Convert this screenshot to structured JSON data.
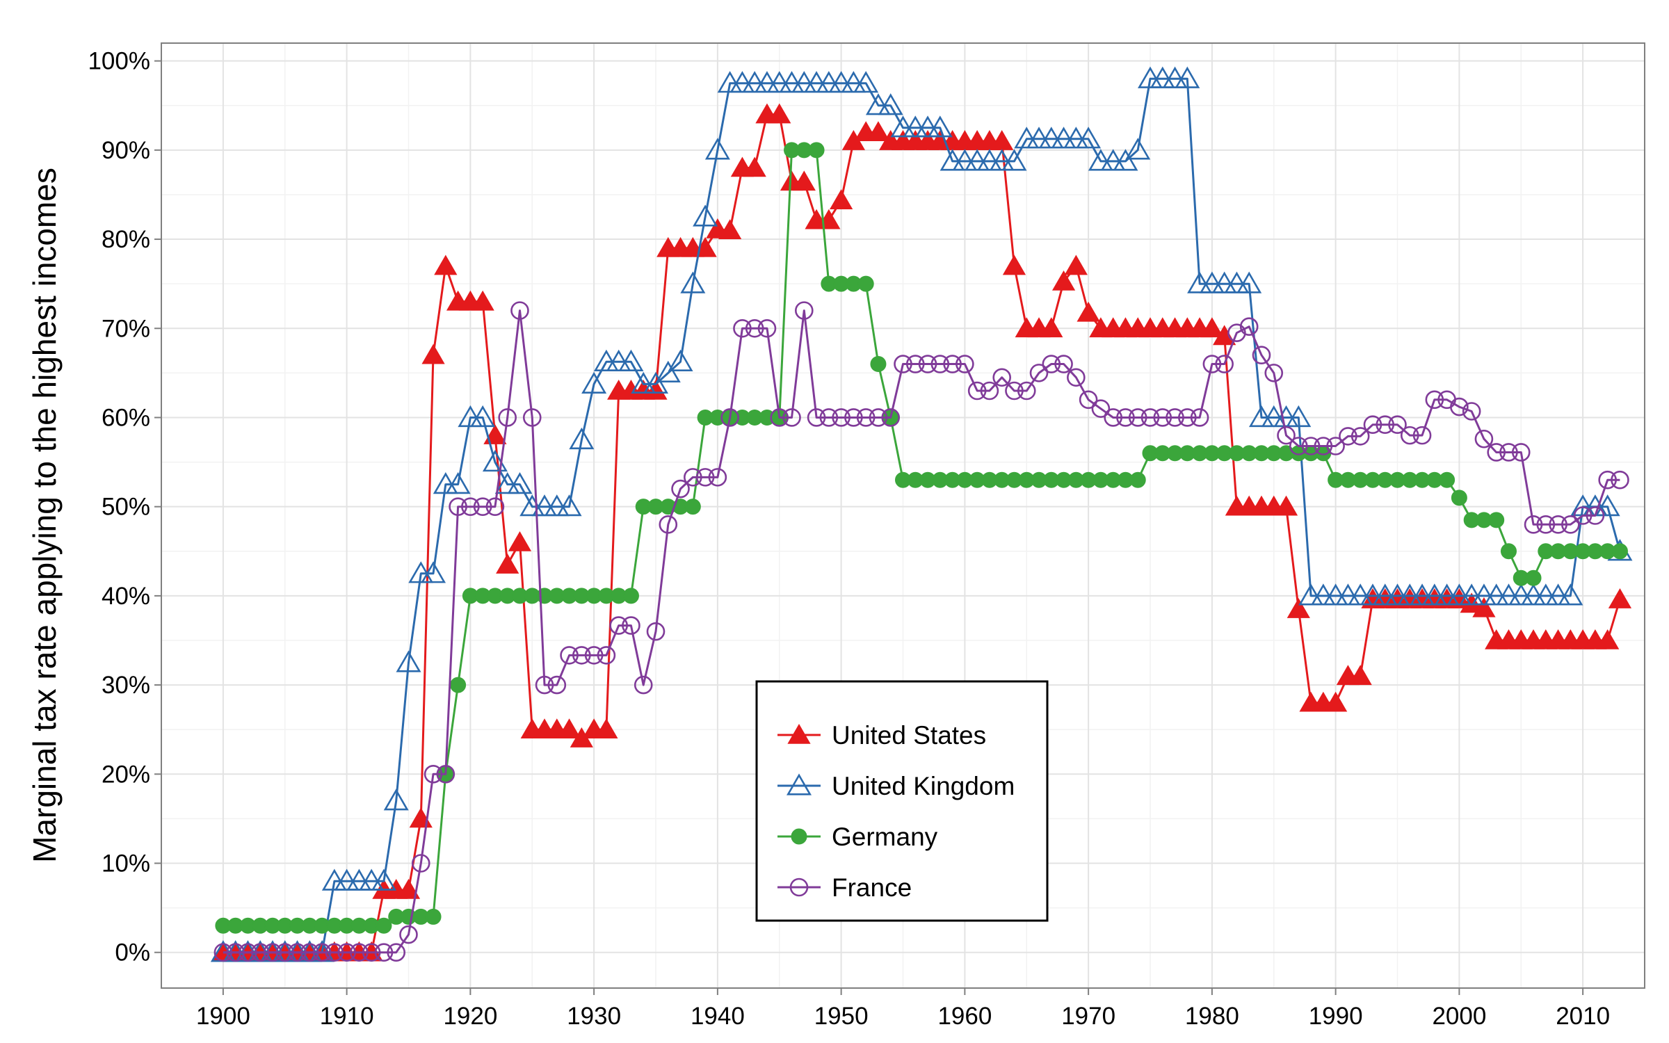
{
  "chart_data": {
    "type": "line",
    "title": "",
    "xlabel": "",
    "ylabel": "Marginal tax rate applying to the highest incomes",
    "xlim": [
      1895,
      2015
    ],
    "ylim": [
      -4,
      102
    ],
    "x_ticks": [
      1900,
      1910,
      1920,
      1930,
      1940,
      1950,
      1960,
      1970,
      1980,
      1990,
      2000,
      2010
    ],
    "x_tick_labels": [
      "1900",
      "1910",
      "1920",
      "1930",
      "1940",
      "1950",
      "1960",
      "1970",
      "1980",
      "1990",
      "2000",
      "2010"
    ],
    "y_ticks": [
      0,
      10,
      20,
      30,
      40,
      50,
      60,
      70,
      80,
      90,
      100
    ],
    "y_tick_labels": [
      "0%",
      "10%",
      "20%",
      "30%",
      "40%",
      "50%",
      "60%",
      "70%",
      "80%",
      "90%",
      "100%"
    ],
    "grid": true,
    "legend_position": "bottom-center",
    "series": [
      {
        "name": "United States",
        "color": "#e41a1c",
        "marker": "filled-triangle",
        "x": [
          1900,
          1901,
          1902,
          1903,
          1904,
          1905,
          1906,
          1907,
          1908,
          1909,
          1910,
          1911,
          1912,
          1913,
          1914,
          1915,
          1916,
          1917,
          1918,
          1919,
          1920,
          1921,
          1922,
          1923,
          1924,
          1925,
          1926,
          1927,
          1928,
          1929,
          1930,
          1931,
          1932,
          1933,
          1934,
          1935,
          1936,
          1937,
          1938,
          1939,
          1940,
          1941,
          1942,
          1943,
          1944,
          1945,
          1946,
          1947,
          1948,
          1949,
          1950,
          1951,
          1952,
          1953,
          1954,
          1955,
          1956,
          1957,
          1958,
          1959,
          1960,
          1961,
          1962,
          1963,
          1964,
          1965,
          1966,
          1967,
          1968,
          1969,
          1970,
          1971,
          1972,
          1973,
          1974,
          1975,
          1976,
          1977,
          1978,
          1979,
          1980,
          1981,
          1982,
          1983,
          1984,
          1985,
          1986,
          1987,
          1988,
          1989,
          1990,
          1991,
          1992,
          1993,
          1994,
          1995,
          1996,
          1997,
          1998,
          1999,
          2000,
          2001,
          2002,
          2003,
          2004,
          2005,
          2006,
          2007,
          2008,
          2009,
          2010,
          2011,
          2012,
          2013
        ],
        "values": [
          0,
          0,
          0,
          0,
          0,
          0,
          0,
          0,
          0,
          0,
          0,
          0,
          0,
          7,
          7,
          7,
          15,
          67,
          77,
          73,
          73,
          73,
          58,
          43.5,
          46,
          25,
          25,
          25,
          25,
          24,
          25,
          25,
          63,
          63,
          63,
          63,
          79,
          79,
          79,
          79,
          81.1,
          81,
          88,
          88,
          94,
          94,
          86.45,
          86.45,
          82.13,
          82.13,
          84.36,
          91,
          92,
          92,
          91,
          91,
          91,
          91,
          91,
          91,
          91,
          91,
          91,
          91,
          77,
          70,
          70,
          70,
          75.25,
          77,
          71.75,
          70,
          70,
          70,
          70,
          70,
          70,
          70,
          70,
          70,
          70,
          69.13,
          50,
          50,
          50,
          50,
          50,
          38.5,
          28,
          28,
          28,
          31,
          31,
          39.6,
          39.6,
          39.6,
          39.6,
          39.6,
          39.6,
          39.6,
          39.6,
          39.1,
          38.6,
          35,
          35,
          35,
          35,
          35,
          35,
          35,
          35,
          35,
          35,
          39.6
        ]
      },
      {
        "name": "United Kingdom",
        "color": "#2b6aad",
        "marker": "hollow-triangle",
        "x": [
          1900,
          1901,
          1902,
          1903,
          1904,
          1905,
          1906,
          1907,
          1908,
          1909,
          1910,
          1911,
          1912,
          1913,
          1914,
          1915,
          1916,
          1917,
          1918,
          1919,
          1920,
          1921,
          1922,
          1923,
          1924,
          1925,
          1926,
          1927,
          1928,
          1929,
          1930,
          1931,
          1932,
          1933,
          1934,
          1935,
          1936,
          1937,
          1938,
          1939,
          1940,
          1941,
          1942,
          1943,
          1944,
          1945,
          1946,
          1947,
          1948,
          1949,
          1950,
          1951,
          1952,
          1953,
          1954,
          1955,
          1956,
          1957,
          1958,
          1959,
          1960,
          1961,
          1962,
          1963,
          1964,
          1965,
          1966,
          1967,
          1968,
          1969,
          1970,
          1971,
          1972,
          1973,
          1974,
          1975,
          1976,
          1977,
          1978,
          1979,
          1980,
          1981,
          1982,
          1983,
          1984,
          1985,
          1986,
          1987,
          1988,
          1989,
          1990,
          1991,
          1992,
          1993,
          1994,
          1995,
          1996,
          1997,
          1998,
          1999,
          2000,
          2001,
          2002,
          2003,
          2004,
          2005,
          2006,
          2007,
          2008,
          2009,
          2010,
          2011,
          2012,
          2013
        ],
        "values": [
          0,
          0,
          0,
          0,
          0,
          0,
          0,
          0,
          0,
          8,
          8,
          8,
          8,
          8,
          17,
          32.5,
          42.5,
          42.5,
          52.5,
          52.5,
          60,
          60,
          55,
          52.5,
          52.5,
          50,
          50,
          50,
          50,
          57.5,
          63.75,
          66.25,
          66.25,
          66.25,
          63.75,
          63.75,
          65,
          66.25,
          75,
          82.5,
          90,
          97.5,
          97.5,
          97.5,
          97.5,
          97.5,
          97.5,
          97.5,
          97.5,
          97.5,
          97.5,
          97.5,
          97.5,
          95,
          95,
          92.5,
          92.5,
          92.5,
          92.5,
          88.75,
          88.75,
          88.75,
          88.75,
          88.75,
          88.75,
          91.25,
          91.25,
          91.25,
          91.25,
          91.25,
          91.25,
          88.75,
          88.75,
          88.75,
          90,
          98,
          98,
          98,
          98,
          75,
          75,
          75,
          75,
          75,
          60,
          60,
          60,
          60,
          40,
          40,
          40,
          40,
          40,
          40,
          40,
          40,
          40,
          40,
          40,
          40,
          40,
          40,
          40,
          40,
          40,
          40,
          40,
          40,
          40,
          40,
          50,
          50,
          50,
          45
        ]
      },
      {
        "name": "Germany",
        "color": "#3ba63b",
        "marker": "filled-circle",
        "x": [
          1900,
          1901,
          1902,
          1903,
          1904,
          1905,
          1906,
          1907,
          1908,
          1909,
          1910,
          1911,
          1912,
          1913,
          1914,
          1915,
          1916,
          1917,
          1918,
          1919,
          1920,
          1921,
          1922,
          1923,
          1924,
          1925,
          1926,
          1927,
          1928,
          1929,
          1930,
          1931,
          1932,
          1933,
          1934,
          1935,
          1936,
          1937,
          1938,
          1939,
          1940,
          1941,
          1942,
          1943,
          1944,
          1945,
          1946,
          1947,
          1948,
          1949,
          1950,
          1951,
          1952,
          1953,
          1954,
          1955,
          1956,
          1957,
          1958,
          1959,
          1960,
          1961,
          1962,
          1963,
          1964,
          1965,
          1966,
          1967,
          1968,
          1969,
          1970,
          1971,
          1972,
          1973,
          1974,
          1975,
          1976,
          1977,
          1978,
          1979,
          1980,
          1981,
          1982,
          1983,
          1984,
          1985,
          1986,
          1987,
          1988,
          1989,
          1990,
          1991,
          1992,
          1993,
          1994,
          1995,
          1996,
          1997,
          1998,
          1999,
          2000,
          2001,
          2002,
          2003,
          2004,
          2005,
          2006,
          2007,
          2008,
          2009,
          2010,
          2011,
          2012,
          2013
        ],
        "values": [
          3,
          3,
          3,
          3,
          3,
          3,
          3,
          3,
          3,
          3,
          3,
          3,
          3,
          3,
          4,
          4,
          4,
          4,
          20,
          30,
          40,
          40,
          40,
          40,
          40,
          40,
          40,
          40,
          40,
          40,
          40,
          40,
          40,
          40,
          50,
          50,
          50,
          50,
          50,
          60,
          60,
          60,
          60,
          60,
          60,
          60,
          90,
          90,
          90,
          75,
          75,
          75,
          75,
          66,
          60,
          53,
          53,
          53,
          53,
          53,
          53,
          53,
          53,
          53,
          53,
          53,
          53,
          53,
          53,
          53,
          53,
          53,
          53,
          53,
          53,
          56,
          56,
          56,
          56,
          56,
          56,
          56,
          56,
          56,
          56,
          56,
          56,
          56,
          56,
          56,
          53,
          53,
          53,
          53,
          53,
          53,
          53,
          53,
          53,
          53,
          51,
          48.5,
          48.5,
          48.5,
          45,
          42,
          42,
          45,
          45,
          45,
          45,
          45,
          45,
          45
        ]
      },
      {
        "name": "France",
        "color": "#803b99",
        "marker": "hollow-circle",
        "x": [
          1900,
          1901,
          1902,
          1903,
          1904,
          1905,
          1906,
          1907,
          1908,
          1909,
          1910,
          1911,
          1912,
          1913,
          1914,
          1915,
          1916,
          1917,
          1918,
          1919,
          1920,
          1921,
          1922,
          1923,
          1924,
          1925,
          1926,
          1927,
          1928,
          1929,
          1930,
          1931,
          1932,
          1933,
          1934,
          1935,
          1936,
          1937,
          1938,
          1939,
          1940,
          1941,
          1942,
          1943,
          1944,
          1945,
          1946,
          1947,
          1948,
          1949,
          1950,
          1951,
          1952,
          1953,
          1954,
          1955,
          1956,
          1957,
          1958,
          1959,
          1960,
          1961,
          1962,
          1963,
          1964,
          1965,
          1966,
          1967,
          1968,
          1969,
          1970,
          1971,
          1972,
          1973,
          1974,
          1975,
          1976,
          1977,
          1978,
          1979,
          1980,
          1981,
          1982,
          1983,
          1984,
          1985,
          1986,
          1987,
          1988,
          1989,
          1990,
          1991,
          1992,
          1993,
          1994,
          1995,
          1996,
          1997,
          1998,
          1999,
          2000,
          2001,
          2002,
          2003,
          2004,
          2005,
          2006,
          2007,
          2008,
          2009,
          2010,
          2011,
          2012,
          2013
        ],
        "values": [
          0,
          0,
          0,
          0,
          0,
          0,
          0,
          0,
          0,
          0,
          0,
          0,
          0,
          0,
          0,
          2,
          10,
          20,
          20,
          50,
          50,
          50,
          50,
          60,
          72,
          60,
          30,
          30,
          33.33,
          33.33,
          33.33,
          33.33,
          36.67,
          36.67,
          30,
          36,
          48,
          52,
          53.3,
          53.3,
          53.3,
          60,
          70,
          70,
          70,
          60,
          60,
          72,
          60,
          60,
          60,
          60,
          60,
          60,
          60,
          66,
          66,
          66,
          66,
          66,
          66,
          63,
          63,
          64.5,
          63,
          63,
          65,
          66,
          66,
          64.5,
          62,
          61,
          60,
          60,
          60,
          60,
          60,
          60,
          60,
          60,
          66,
          66,
          69.5,
          70.2,
          67,
          65,
          58,
          56.8,
          56.8,
          56.8,
          56.8,
          57.9,
          57.9,
          59.2,
          59.2,
          59.2,
          58,
          58,
          62,
          62,
          61.2,
          60.7,
          57.6,
          56.1,
          56.1,
          56.1,
          48,
          48,
          48,
          48,
          49,
          49,
          53,
          53
        ]
      }
    ]
  }
}
